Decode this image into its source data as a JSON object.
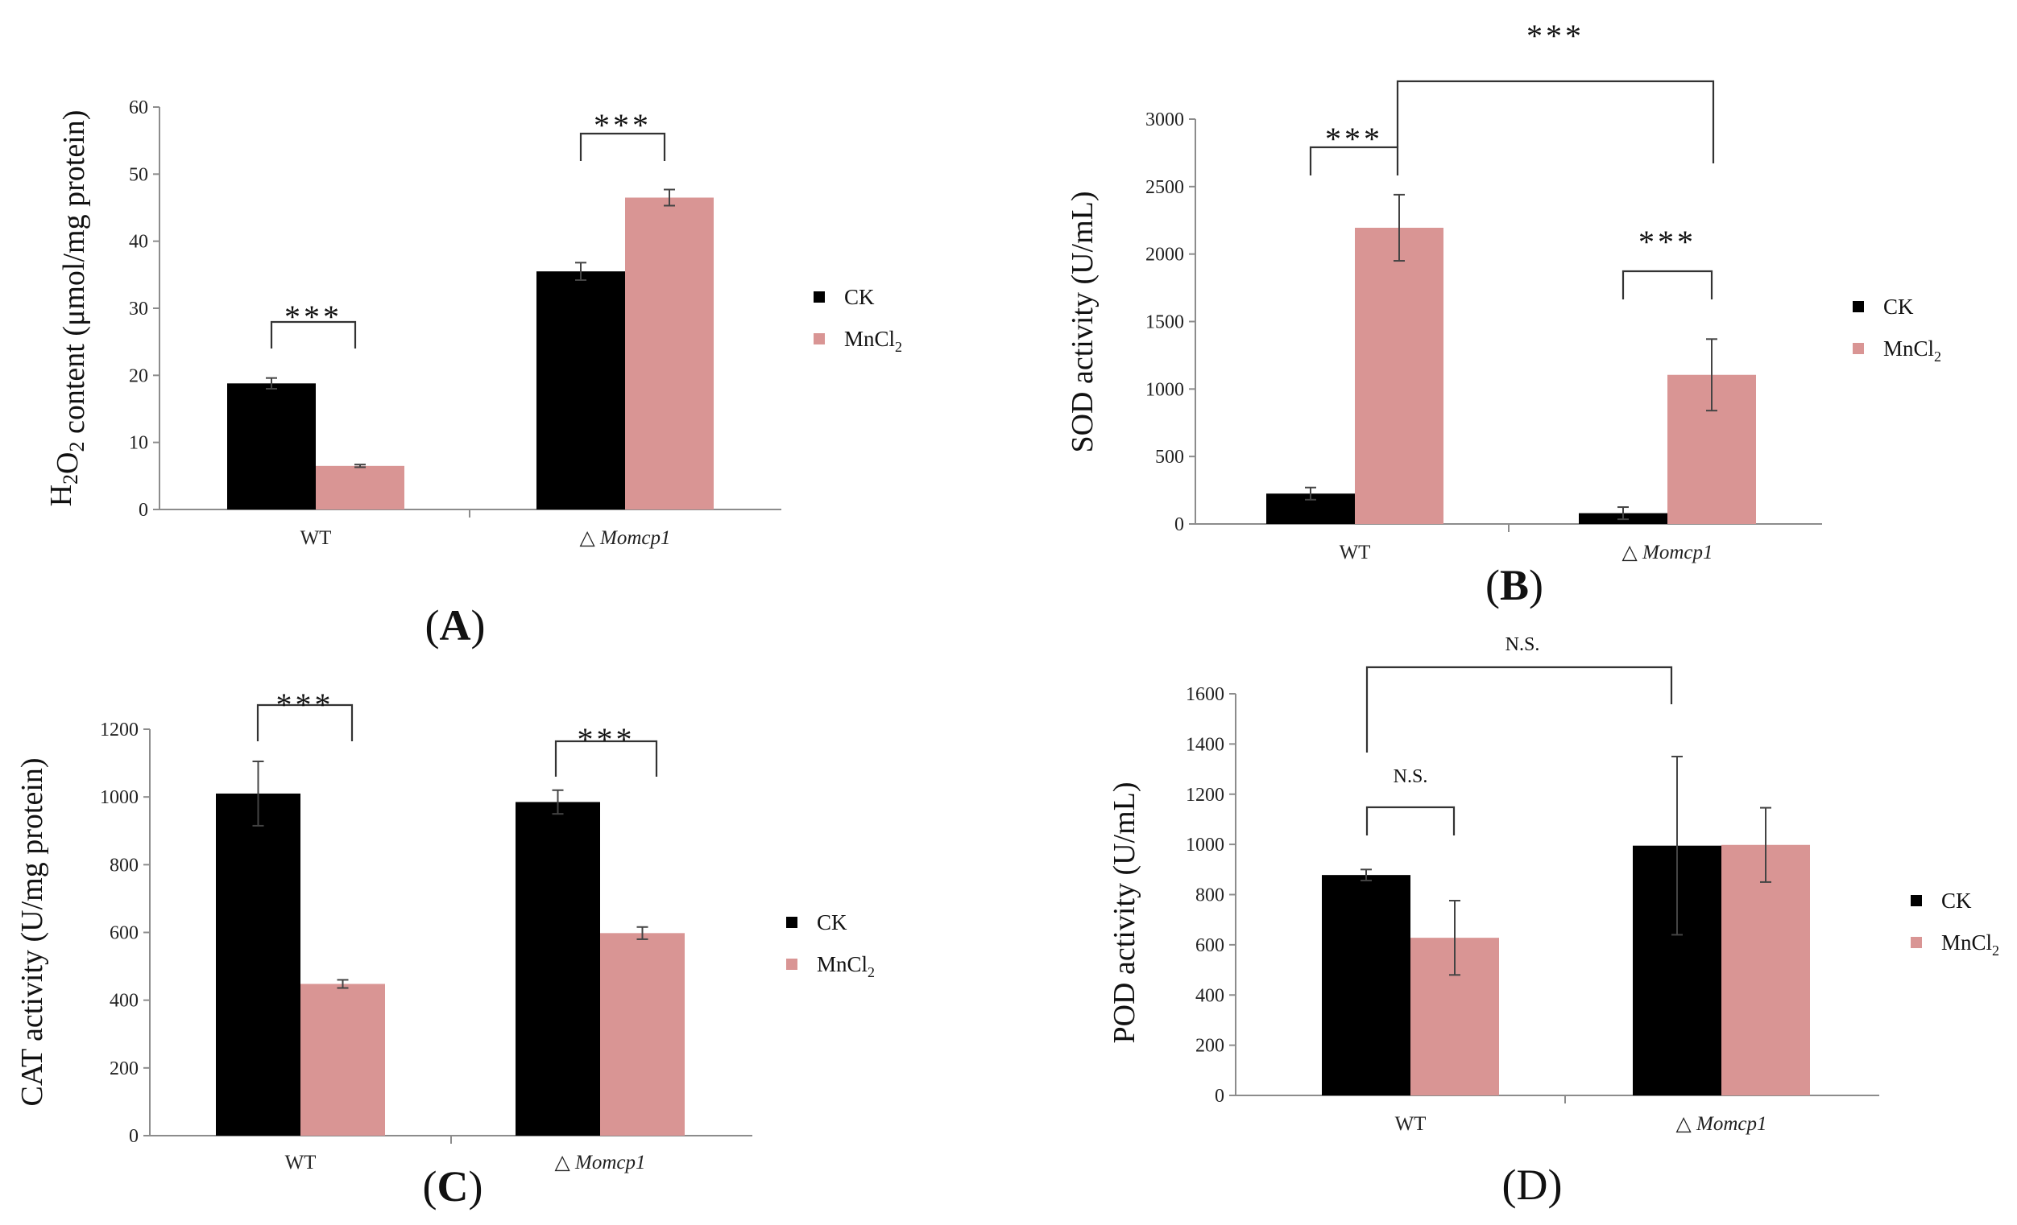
{
  "colors": {
    "ck": "#000000",
    "mncl2": "#d99594"
  },
  "chart_data": [
    {
      "panel": "(A)",
      "panel_letter": "A",
      "panel_bold": true,
      "type": "bar",
      "categories": [
        "WT",
        "△ Momcp1"
      ],
      "category_italic": [
        false,
        true
      ],
      "series": [
        {
          "name": "CK",
          "values": [
            18.8,
            35.5
          ],
          "errors": [
            0.8,
            1.3
          ]
        },
        {
          "name": "MnCl2",
          "values": [
            6.5,
            46.5
          ],
          "errors": [
            0.2,
            1.2
          ]
        }
      ],
      "ylim": [
        0,
        60
      ],
      "yticks": [
        0,
        10,
        20,
        30,
        40,
        50,
        60
      ],
      "ylabel": "H2O2 content (μmol/mg protein)",
      "ylabel_parts": [
        "H",
        "2",
        "O",
        "2",
        " content  (μmol/mg protein)"
      ],
      "legend": [
        "CK",
        "MnCl2"
      ],
      "legend_parts": [
        [
          "CK"
        ],
        [
          "MnCl",
          "2"
        ]
      ],
      "annotations": [
        {
          "text": "***",
          "between": "WT CK vs MnCl2"
        },
        {
          "text": "***",
          "between": "△ Momcp1 CK vs MnCl2"
        }
      ]
    },
    {
      "panel": "(B)",
      "panel_letter": "B",
      "panel_bold": true,
      "type": "bar",
      "categories": [
        "WT",
        "△ Momcp1"
      ],
      "category_italic": [
        false,
        true
      ],
      "series": [
        {
          "name": "CK",
          "values": [
            225,
            80
          ],
          "errors": [
            45,
            45
          ]
        },
        {
          "name": "MnCl2",
          "values": [
            2195,
            1105
          ],
          "errors": [
            245,
            265
          ]
        }
      ],
      "ylim": [
        0,
        3000
      ],
      "yticks": [
        0,
        500,
        1000,
        1500,
        2000,
        2500,
        3000
      ],
      "ylabel": "SOD activity (U/mL)",
      "ylabel_parts": [
        "SOD activity (U/mL)"
      ],
      "legend": [
        "CK",
        "MnCl2"
      ],
      "legend_parts": [
        [
          "CK"
        ],
        [
          "MnCl",
          "2"
        ]
      ],
      "annotations": [
        {
          "text": "***",
          "between": "WT CK vs MnCl2"
        },
        {
          "text": "***",
          "between": "△ Momcp1 CK vs MnCl2"
        },
        {
          "text": "***",
          "between": "WT MnCl2 vs △ Momcp1 MnCl2"
        }
      ]
    },
    {
      "panel": "(C)",
      "panel_letter": "C",
      "panel_bold": true,
      "type": "bar",
      "categories": [
        "WT",
        "△ Momcp1"
      ],
      "category_italic": [
        false,
        true
      ],
      "series": [
        {
          "name": "CK",
          "values": [
            1010,
            985
          ],
          "errors": [
            95,
            35
          ]
        },
        {
          "name": "MnCl2",
          "values": [
            448,
            598
          ],
          "errors": [
            12,
            18
          ]
        }
      ],
      "ylim": [
        0,
        1200
      ],
      "yticks": [
        0,
        200,
        400,
        600,
        800,
        1000,
        1200
      ],
      "ylabel": "CAT activity (U/mg protein)",
      "ylabel_parts": [
        "CAT activity  (U/mg protein)"
      ],
      "legend": [
        "CK",
        "MnCl2"
      ],
      "legend_parts": [
        [
          "CK"
        ],
        [
          "MnCl",
          "2"
        ]
      ],
      "annotations": [
        {
          "text": "***",
          "between": "WT CK vs MnCl2"
        },
        {
          "text": "***",
          "between": "△ Momcp1 CK vs MnCl2"
        }
      ]
    },
    {
      "panel": "(D)",
      "panel_letter": "D",
      "panel_bold": false,
      "type": "bar",
      "categories": [
        "WT",
        "△ Momcp1"
      ],
      "category_italic": [
        false,
        true
      ],
      "series": [
        {
          "name": "CK",
          "values": [
            878,
            995
          ],
          "errors": [
            22,
            355
          ]
        },
        {
          "name": "MnCl2",
          "values": [
            628,
            998
          ],
          "errors": [
            148,
            148
          ]
        }
      ],
      "ylim": [
        0,
        1600
      ],
      "yticks": [
        0,
        200,
        400,
        600,
        800,
        1000,
        1200,
        1400,
        1600
      ],
      "ylabel": "POD activity (U/mL)",
      "ylabel_parts": [
        "POD activity  (U/mL)"
      ],
      "legend": [
        "CK",
        "MnCl2"
      ],
      "legend_parts": [
        [
          "CK"
        ],
        [
          "MnCl",
          "2"
        ]
      ],
      "annotations": [
        {
          "text": "N.S.",
          "between": "WT CK vs MnCl2"
        },
        {
          "text": "N.S.",
          "between": "WT CK vs △ Momcp1 CK"
        }
      ]
    }
  ]
}
